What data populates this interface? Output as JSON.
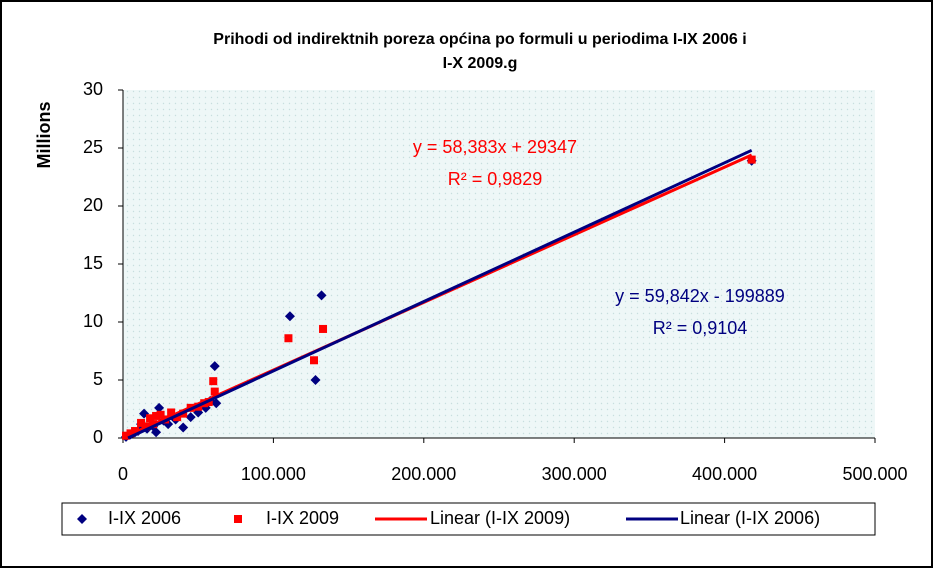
{
  "chart_data": {
    "type": "scatter",
    "title": [
      "Prihodi od indirektnih poreza općina po formuli u periodima I-IX 2006 i",
      "I-X 2009.g"
    ],
    "ylabel": "Millions",
    "xlim": [
      0,
      500000
    ],
    "xticks": [
      0,
      {
        "value": 100000,
        "label": "100.000"
      },
      {
        "value": 200000,
        "label": "200.000"
      },
      {
        "value": 300000,
        "label": "300.000"
      },
      {
        "value": 400000,
        "label": "400.000"
      },
      {
        "value": 500000,
        "label": "500.000"
      }
    ],
    "ylim": [
      0,
      30
    ],
    "yticks": [
      0,
      5,
      10,
      15,
      20,
      25,
      30
    ],
    "legend": "bottom",
    "series": [
      {
        "name": "I-IX 2006",
        "type": "scatter",
        "marker": "diamond",
        "color": "#000080",
        "x": [
          418000,
          132000,
          111000,
          128000,
          61000,
          62000,
          2000,
          5000,
          8000,
          10000,
          14000,
          16000,
          20000,
          24000,
          27000,
          30000,
          35000,
          40000,
          45000,
          50000,
          55000,
          58000,
          22000,
          12000
        ],
        "values": [
          23.9,
          12.3,
          10.5,
          5.0,
          6.2,
          3.0,
          0.1,
          0.3,
          0.5,
          0.6,
          2.1,
          0.8,
          1.0,
          2.6,
          1.5,
          1.2,
          1.6,
          0.9,
          1.8,
          2.2,
          2.6,
          3.2,
          0.5,
          1.2
        ]
      },
      {
        "name": "I-IX 2009",
        "type": "scatter",
        "marker": "square",
        "color": "#ff0000",
        "x": [
          418000,
          133000,
          110000,
          127000,
          60000,
          61000,
          57000,
          2000,
          5000,
          8000,
          12000,
          15000,
          18000,
          22000,
          25000,
          28000,
          32000,
          36000,
          40000,
          45000,
          50000,
          54000,
          20000
        ],
        "values": [
          24.0,
          9.4,
          8.6,
          6.7,
          4.9,
          4.0,
          3.1,
          0.2,
          0.4,
          0.6,
          1.3,
          1.0,
          1.7,
          1.9,
          2.0,
          1.6,
          2.2,
          1.8,
          2.1,
          2.6,
          2.7,
          3.0,
          1.2
        ]
      },
      {
        "name": "Linear (I-IX 2009)",
        "type": "line",
        "color": "#ff0000",
        "x": [
          0,
          418000
        ],
        "values": [
          0.03,
          24.4
        ]
      },
      {
        "name": "Linear (I-IX 2006)",
        "type": "line",
        "color": "#000080",
        "x": [
          3340,
          418000
        ],
        "values": [
          0,
          24.8
        ]
      }
    ],
    "annotations": [
      {
        "text": "y = 58,383x + 29347",
        "color": "#ff0000"
      },
      {
        "text": "R² = 0,9829",
        "color": "#ff0000"
      },
      {
        "text": "y = 59,842x - 199889",
        "color": "#000080"
      },
      {
        "text": "R² = 0,9104",
        "color": "#000080"
      }
    ]
  }
}
